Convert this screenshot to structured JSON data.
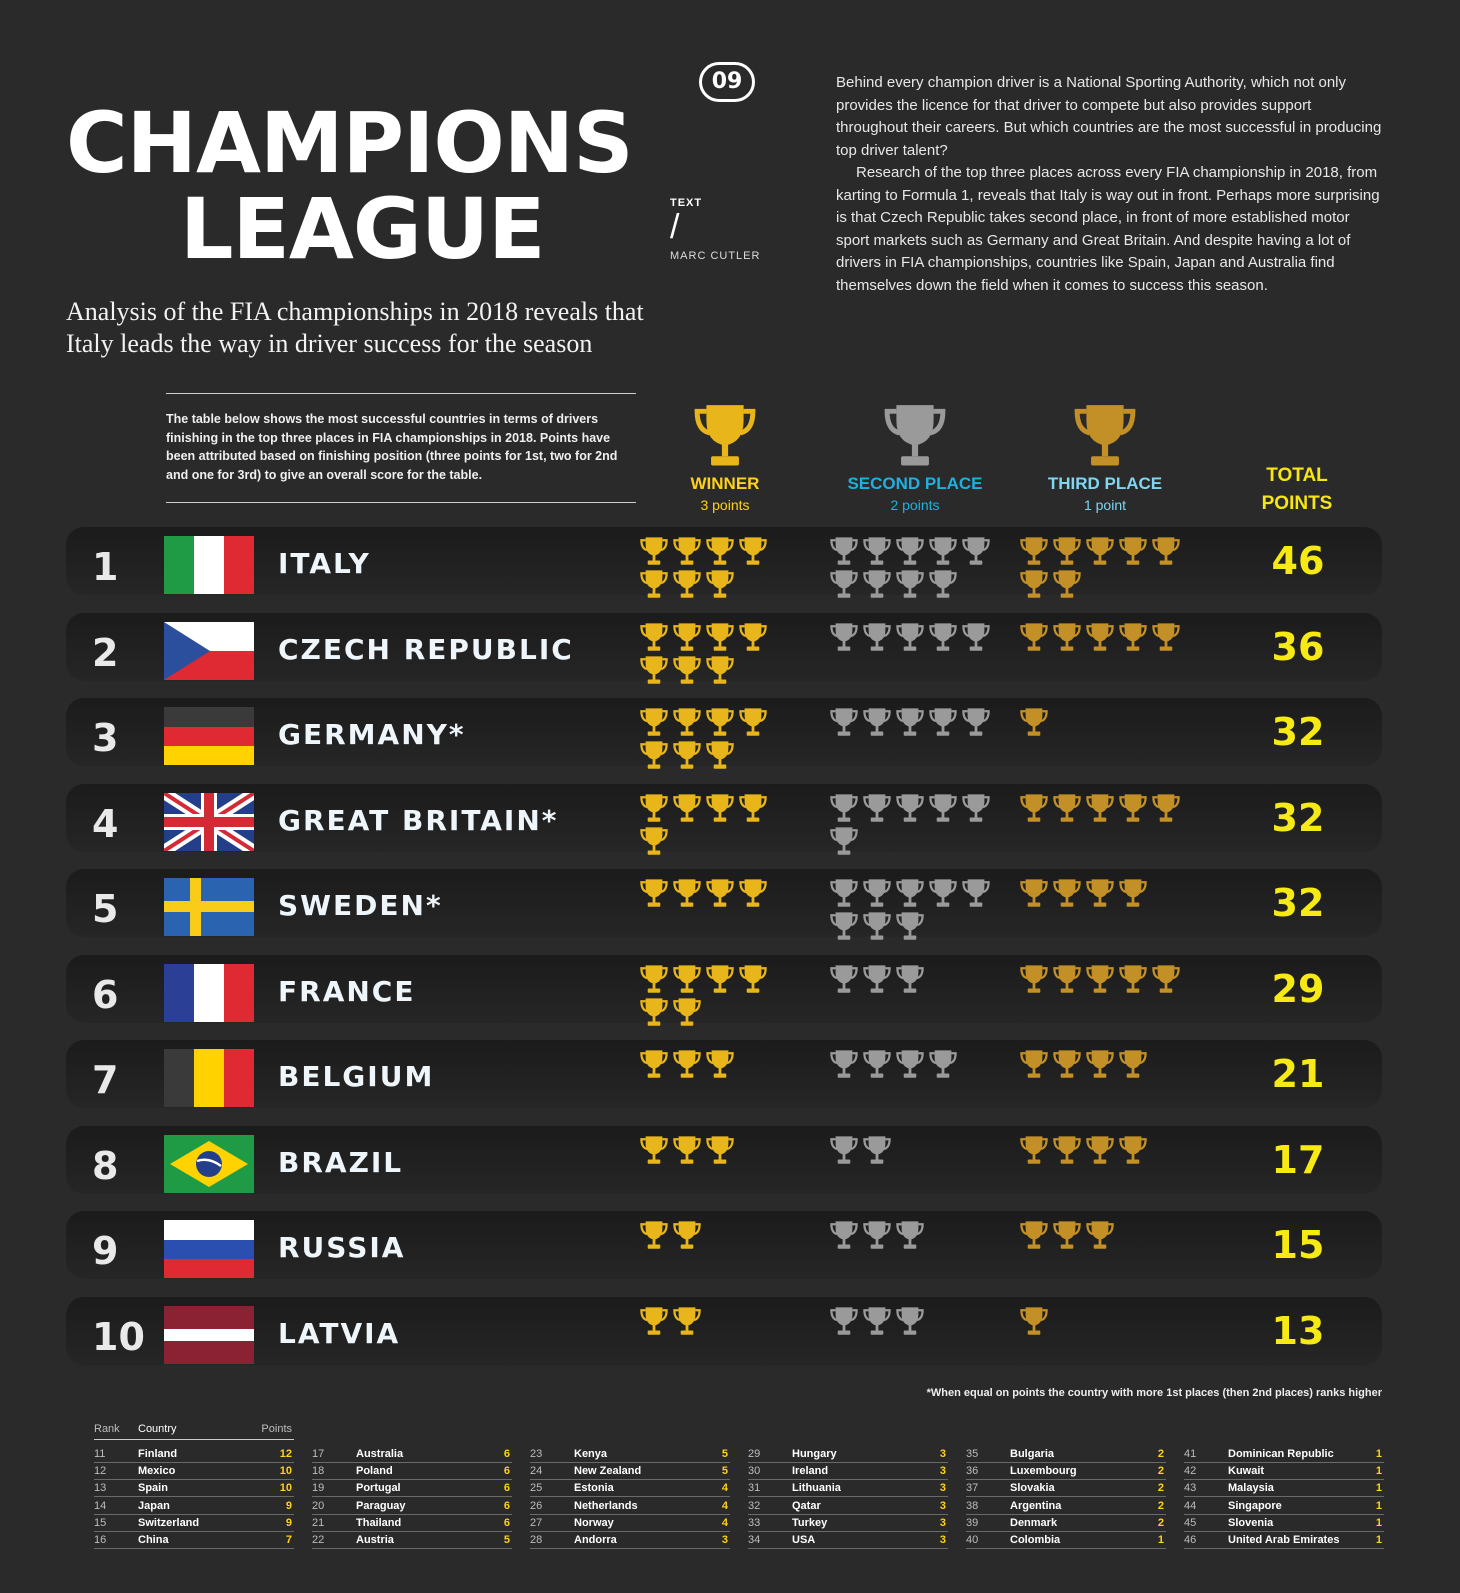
{
  "header": {
    "title_line1": "CHAMPIONS",
    "title_line2": "LEAGUE",
    "issue": "09",
    "text_label": "TEXT",
    "slash": "/",
    "author": "MARC CUTLER",
    "subtitle": "Analysis of the FIA championships in 2018 reveals that Italy leads the way in driver success for the season"
  },
  "intro": [
    "Behind every champion driver is a National Sporting Authority, which not only provides the licence for that driver to compete but also provides support throughout their careers. But which countries are the most successful in producing top driver talent?",
    "Research of the top three places across every FIA championship in 2018, from karting to Formula 1, reveals that Italy is way out in front. Perhaps more surprising is that Czech Republic takes second place, in front of more established motor sport markets such as Germany and Great Britain. And despite having a lot of drivers in FIA championships, countries like Spain, Japan and Australia find themselves down the field when it comes to success this season."
  ],
  "note": "The table below shows the most successful countries in terms of drivers finishing in the top three places in FIA championships in 2018. Points have been attributed based on finishing position (three points for 1st, two for 2nd and one for 3rd) to give an overall score for the table.",
  "columns": {
    "winner": {
      "title": "WINNER",
      "points": "3 points"
    },
    "second": {
      "title": "SECOND PLACE",
      "points": "2 points"
    },
    "third": {
      "title": "THIRD PLACE",
      "points": "1 point"
    },
    "total_line1": "TOTAL",
    "total_line2": "POINTS"
  },
  "colors": {
    "gold": "#e8b51a",
    "silver": "#9a9a9a",
    "bronze": "#c29027",
    "accent": "#f7ea14"
  },
  "icons": {
    "trophy": "trophy-icon"
  },
  "top10": [
    {
      "rank": "1",
      "flag": "italy",
      "name": "ITALY",
      "first": 7,
      "second": 9,
      "third": 7,
      "total": "46"
    },
    {
      "rank": "2",
      "flag": "czech",
      "name": "CZECH REPUBLIC",
      "first": 7,
      "second": 5,
      "third": 5,
      "total": "36"
    },
    {
      "rank": "3",
      "flag": "germany",
      "name": "GERMANY*",
      "first": 7,
      "second": 5,
      "third": 1,
      "total": "32"
    },
    {
      "rank": "4",
      "flag": "uk",
      "name": "GREAT BRITAIN*",
      "first": 5,
      "second": 6,
      "third": 5,
      "total": "32"
    },
    {
      "rank": "5",
      "flag": "sweden",
      "name": "SWEDEN*",
      "first": 4,
      "second": 8,
      "third": 4,
      "total": "32"
    },
    {
      "rank": "6",
      "flag": "france",
      "name": "FRANCE",
      "first": 6,
      "second": 3,
      "third": 5,
      "total": "29"
    },
    {
      "rank": "7",
      "flag": "belgium",
      "name": "BELGIUM",
      "first": 3,
      "second": 4,
      "third": 4,
      "total": "21"
    },
    {
      "rank": "8",
      "flag": "brazil",
      "name": "BRAZIL",
      "first": 3,
      "second": 2,
      "third": 4,
      "total": "17"
    },
    {
      "rank": "9",
      "flag": "russia",
      "name": "RUSSIA",
      "first": 2,
      "second": 3,
      "third": 3,
      "total": "15"
    },
    {
      "rank": "10",
      "flag": "latvia",
      "name": "LATVIA",
      "first": 2,
      "second": 3,
      "third": 1,
      "total": "13"
    }
  ],
  "footnote": "*When equal on points the country with more 1st places (then 2nd places) ranks higher",
  "lower_table": {
    "headers": {
      "rank": "Rank",
      "country": "Country",
      "points": "Points"
    },
    "columns": [
      [
        {
          "rank": "11",
          "country": "Finland",
          "points": "12"
        },
        {
          "rank": "12",
          "country": "Mexico",
          "points": "10"
        },
        {
          "rank": "13",
          "country": "Spain",
          "points": "10"
        },
        {
          "rank": "14",
          "country": "Japan",
          "points": "9"
        },
        {
          "rank": "15",
          "country": "Switzerland",
          "points": "9"
        },
        {
          "rank": "16",
          "country": "China",
          "points": "7"
        }
      ],
      [
        {
          "rank": "17",
          "country": "Australia",
          "points": "6"
        },
        {
          "rank": "18",
          "country": "Poland",
          "points": "6"
        },
        {
          "rank": "19",
          "country": "Portugal",
          "points": "6"
        },
        {
          "rank": "20",
          "country": "Paraguay",
          "points": "6"
        },
        {
          "rank": "21",
          "country": "Thailand",
          "points": "6"
        },
        {
          "rank": "22",
          "country": "Austria",
          "points": "5"
        }
      ],
      [
        {
          "rank": "23",
          "country": "Kenya",
          "points": "5"
        },
        {
          "rank": "24",
          "country": "New Zealand",
          "points": "5"
        },
        {
          "rank": "25",
          "country": "Estonia",
          "points": "4"
        },
        {
          "rank": "26",
          "country": "Netherlands",
          "points": "4"
        },
        {
          "rank": "27",
          "country": "Norway",
          "points": "4"
        },
        {
          "rank": "28",
          "country": "Andorra",
          "points": "3"
        }
      ],
      [
        {
          "rank": "29",
          "country": "Hungary",
          "points": "3"
        },
        {
          "rank": "30",
          "country": "Ireland",
          "points": "3"
        },
        {
          "rank": "31",
          "country": "Lithuania",
          "points": "3"
        },
        {
          "rank": "32",
          "country": "Qatar",
          "points": "3"
        },
        {
          "rank": "33",
          "country": "Turkey",
          "points": "3"
        },
        {
          "rank": "34",
          "country": "USA",
          "points": "3"
        }
      ],
      [
        {
          "rank": "35",
          "country": "Bulgaria",
          "points": "2"
        },
        {
          "rank": "36",
          "country": "Luxembourg",
          "points": "2"
        },
        {
          "rank": "37",
          "country": "Slovakia",
          "points": "2"
        },
        {
          "rank": "38",
          "country": "Argentina",
          "points": "2"
        },
        {
          "rank": "39",
          "country": "Denmark",
          "points": "2"
        },
        {
          "rank": "40",
          "country": "Colombia",
          "points": "1"
        }
      ],
      [
        {
          "rank": "41",
          "country": "Dominican Republic",
          "points": "1"
        },
        {
          "rank": "42",
          "country": "Kuwait",
          "points": "1"
        },
        {
          "rank": "43",
          "country": "Malaysia",
          "points": "1"
        },
        {
          "rank": "44",
          "country": "Singapore",
          "points": "1"
        },
        {
          "rank": "45",
          "country": "Slovenia",
          "points": "1"
        },
        {
          "rank": "46",
          "country": "United Arab Emirates",
          "points": "1"
        }
      ]
    ]
  }
}
